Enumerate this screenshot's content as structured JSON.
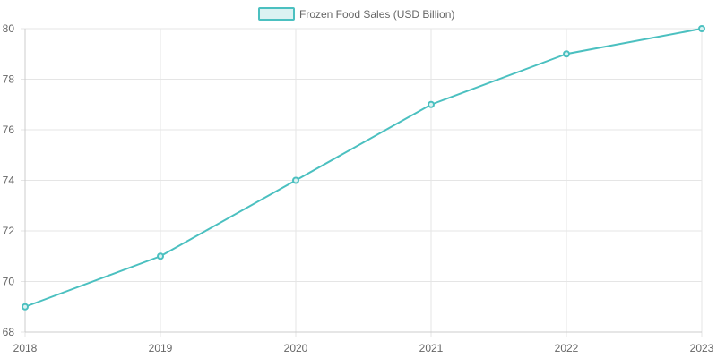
{
  "chart_data": {
    "type": "line",
    "title": "",
    "xlabel": "",
    "ylabel": "",
    "categories": [
      "2018",
      "2019",
      "2020",
      "2021",
      "2022",
      "2023"
    ],
    "series": [
      {
        "name": "Frozen Food Sales (USD Billion)",
        "values": [
          69,
          71,
          74,
          77,
          79,
          80
        ],
        "color": "#4bc0c0",
        "fill": "#dbf2f2"
      }
    ],
    "ylim": [
      68,
      80
    ],
    "yticks": [
      68,
      70,
      72,
      74,
      76,
      78,
      80
    ],
    "grid": true,
    "legend": "top-center",
    "colors": {
      "grid": "#e5e5e5",
      "axis": "#cccccc",
      "text": "#666666"
    }
  }
}
